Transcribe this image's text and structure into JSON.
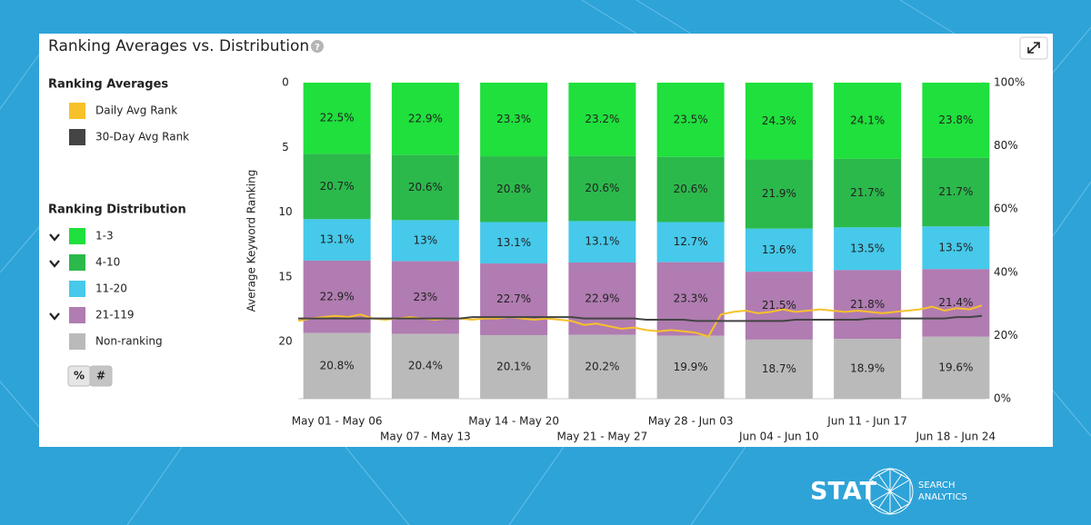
{
  "chart_data": {
    "type": "bar",
    "title": "Ranking Averages vs. Distribution",
    "help": "?",
    "y_label": "Average Keyword Ranking",
    "legend_groups": [
      "Ranking Averages",
      "Ranking Distribution"
    ],
    "toggle": [
      "%",
      "#"
    ],
    "categories": [
      "May 01 - May 06",
      "May 07 - May 13",
      "May 14 - May 20",
      "May 21 - May 27",
      "May 28 - Jun 03",
      "Jun 04 - Jun 10",
      "Jun 11 - Jun 17",
      "Jun 18 - Jun 24"
    ],
    "ylim": [
      0,
      24.4
    ],
    "y_inverted": true,
    "yticks": [
      0,
      5,
      10,
      15,
      20
    ],
    "y2lim": [
      0,
      100
    ],
    "y2ticks": [
      {
        "value": 0,
        "label": "0%"
      },
      {
        "value": 20,
        "label": "20%"
      },
      {
        "value": 40,
        "label": "40%"
      },
      {
        "value": 60,
        "label": "60%"
      },
      {
        "value": 80,
        "label": "80%"
      },
      {
        "value": 100,
        "label": "100%"
      }
    ],
    "stacked": true,
    "line_series": [
      {
        "name": "Daily Avg Rank",
        "color": "#f7c12a",
        "axis": "y",
        "values": [
          18.4,
          18.2,
          18.1,
          18.0,
          18.1,
          17.9,
          18.2,
          18.3,
          18.2,
          18.1,
          18.2,
          18.3,
          18.2,
          18.2,
          18.3,
          18.2,
          18.2,
          18.1,
          18.2,
          18.3,
          18.2,
          18.3,
          18.4,
          18.7,
          18.6,
          18.8,
          19.0,
          18.9,
          19.1,
          19.2,
          19.1,
          19.2,
          19.3,
          19.6,
          17.9,
          17.7,
          17.6,
          17.8,
          17.7,
          17.5,
          17.7,
          17.6,
          17.5,
          17.6,
          17.7,
          17.6,
          17.7,
          17.8,
          17.7,
          17.6,
          17.5,
          17.3,
          17.6,
          17.4,
          17.5,
          17.2
        ]
      },
      {
        "name": "30-Day Avg Rank",
        "color": "#444444",
        "axis": "y",
        "values": [
          18.2,
          18.2,
          18.2,
          18.2,
          18.2,
          18.2,
          18.2,
          18.2,
          18.2,
          18.2,
          18.2,
          18.2,
          18.2,
          18.2,
          18.1,
          18.1,
          18.1,
          18.1,
          18.1,
          18.1,
          18.1,
          18.1,
          18.1,
          18.2,
          18.2,
          18.2,
          18.2,
          18.2,
          18.3,
          18.3,
          18.3,
          18.3,
          18.4,
          18.4,
          18.4,
          18.4,
          18.4,
          18.4,
          18.4,
          18.4,
          18.3,
          18.3,
          18.3,
          18.3,
          18.3,
          18.3,
          18.2,
          18.2,
          18.2,
          18.2,
          18.2,
          18.2,
          18.2,
          18.1,
          18.1,
          18.0
        ]
      }
    ],
    "series": [
      {
        "name": "1-3",
        "color": "#1fe03c",
        "axis": "y2",
        "values": [
          22.5,
          22.9,
          23.3,
          23.2,
          23.5,
          24.3,
          24.1,
          23.8
        ],
        "value_labels": [
          "22.5%",
          "22.9%",
          "23.3%",
          "23.2%",
          "23.5%",
          "24.3%",
          "24.1%",
          "23.8%"
        ]
      },
      {
        "name": "4-10",
        "color": "#2bb94b",
        "axis": "y2",
        "values": [
          20.7,
          20.6,
          20.8,
          20.6,
          20.6,
          21.9,
          21.7,
          21.7
        ],
        "value_labels": [
          "20.7%",
          "20.6%",
          "20.8%",
          "20.6%",
          "20.6%",
          "21.9%",
          "21.7%",
          "21.7%"
        ]
      },
      {
        "name": "11-20",
        "color": "#46c9ea",
        "axis": "y2",
        "values": [
          13.1,
          13,
          13.1,
          13.1,
          12.7,
          13.6,
          13.5,
          13.5
        ],
        "value_labels": [
          "13.1%",
          "13%",
          "13.1%",
          "13.1%",
          "12.7%",
          "13.6%",
          "13.5%",
          "13.5%"
        ]
      },
      {
        "name": "21-119",
        "color": "#b07cb1",
        "axis": "y2",
        "values": [
          22.9,
          23,
          22.7,
          22.9,
          23.3,
          21.5,
          21.8,
          21.4
        ],
        "value_labels": [
          "22.9%",
          "23%",
          "22.7%",
          "22.9%",
          "23.3%",
          "21.5%",
          "21.8%",
          "21.4%"
        ]
      },
      {
        "name": "Non-ranking",
        "color": "#bababa",
        "axis": "y2",
        "values": [
          20.8,
          20.4,
          20.1,
          20.2,
          19.9,
          18.7,
          18.9,
          19.6
        ],
        "value_labels": [
          "20.8%",
          "20.4%",
          "20.1%",
          "20.2%",
          "19.9%",
          "18.7%",
          "18.9%",
          "19.6%"
        ]
      }
    ]
  },
  "branding": {
    "logo": "STAT",
    "line1": "SEARCH",
    "line2": "ANALYTICS"
  }
}
